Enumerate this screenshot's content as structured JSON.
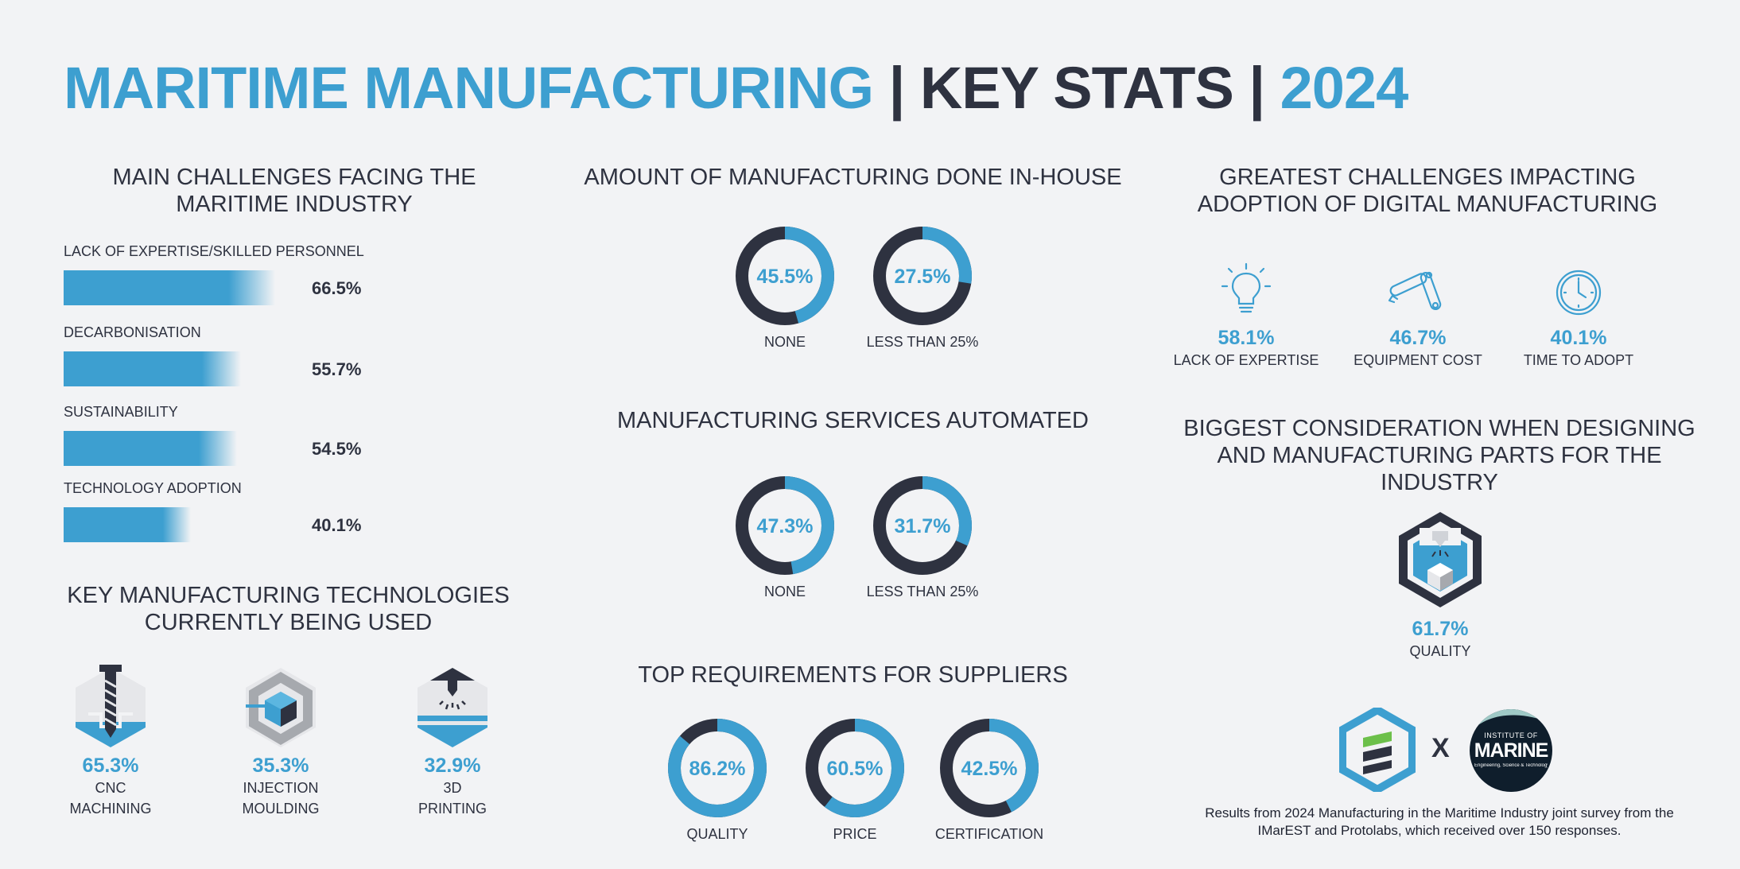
{
  "title": {
    "part1": "MARITIME MANUFACTURING",
    "sep1": " | ",
    "part2": "KEY STATS",
    "sep2": " | ",
    "part3": "2024"
  },
  "colors": {
    "accent": "#3d9fd0",
    "dark": "#2e3240",
    "background": "#f2f3f5"
  },
  "challenges": {
    "heading": "MAIN CHALLENGES FACING THE MARITIME INDUSTRY",
    "chart_data": {
      "type": "bar",
      "categories": [
        "LACK OF EXPERTISE/SKILLED PERSONNEL",
        "DECARBONISATION",
        "SUSTAINABILITY",
        "TECHNOLOGY ADOPTION"
      ],
      "values": [
        66.5,
        55.7,
        54.5,
        40.1
      ],
      "value_labels": [
        "66.5%",
        "55.7%",
        "54.5%",
        "40.1%"
      ]
    }
  },
  "technologies": {
    "heading": "KEY MANUFACTURING TECHNOLOGIES CURRENTLY BEING USED",
    "items": [
      {
        "icon": "cnc-drill-icon",
        "value": "65.3%",
        "line1": "CNC",
        "line2": "MACHINING"
      },
      {
        "icon": "injection-mould-icon",
        "value": "35.3%",
        "line1": "INJECTION",
        "line2": "MOULDING"
      },
      {
        "icon": "3d-printer-icon",
        "value": "32.9%",
        "line1": "3D",
        "line2": "PRINTING"
      }
    ]
  },
  "in_house": {
    "heading": "AMOUNT OF MANUFACTURING DONE IN-HOUSE",
    "chart_data": {
      "type": "donut",
      "categories": [
        "NONE",
        "LESS THAN 25%"
      ],
      "values": [
        45.5,
        27.5
      ],
      "value_labels": [
        "45.5%",
        "27.5%"
      ]
    }
  },
  "automated": {
    "heading": "MANUFACTURING SERVICES AUTOMATED",
    "chart_data": {
      "type": "donut",
      "categories": [
        "NONE",
        "LESS THAN 25%"
      ],
      "values": [
        47.3,
        31.7
      ],
      "value_labels": [
        "47.3%",
        "31.7%"
      ]
    }
  },
  "suppliers": {
    "heading": "TOP REQUIREMENTS FOR SUPPLIERS",
    "chart_data": {
      "type": "donut",
      "categories": [
        "QUALITY",
        "PRICE",
        "CERTIFICATION"
      ],
      "values": [
        86.2,
        60.5,
        42.5
      ],
      "value_labels": [
        "86.2%",
        "60.5%",
        "42.5%"
      ]
    }
  },
  "digital": {
    "heading_line1": "GREATEST CHALLENGES IMPACTING",
    "heading_line2": "ADOPTION OF DIGITAL MANUFACTURING",
    "items": [
      {
        "icon": "lightbulb-icon",
        "value": "58.1%",
        "label": "LACK OF EXPERTISE"
      },
      {
        "icon": "robot-arm-icon",
        "value": "46.7%",
        "label": "EQUIPMENT COST"
      },
      {
        "icon": "clock-icon",
        "value": "40.1%",
        "label": "TIME TO ADOPT"
      }
    ]
  },
  "consideration": {
    "heading_line1": "BIGGEST CONSIDERATION WHEN DESIGNING",
    "heading_line2": "AND MANUFACTURING PARTS FOR THE",
    "heading_line3": "INDUSTRY",
    "icon": "quality-machine-icon",
    "value": "61.7%",
    "label": "QUALITY"
  },
  "logos": {
    "protolabs_icon": "protolabs-logo",
    "times": "X",
    "imarest": {
      "line1": "INSTITUTE OF",
      "line2": "MARINE",
      "line3": "Engineering, Science & Technology"
    }
  },
  "footnote": "Results from 2024 Manufacturing in the Maritime Industry joint survey from the IMarEST and Protolabs, which received over 150 responses."
}
